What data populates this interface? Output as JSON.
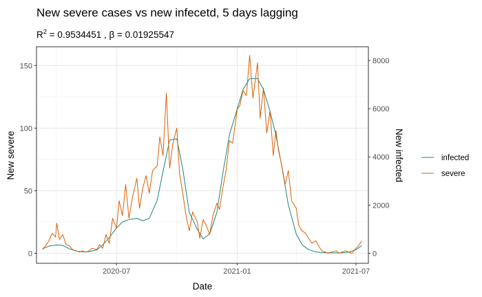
{
  "chart_data": {
    "type": "line",
    "title": "New severe cases vs new infecetd, 5 days lagging",
    "subtitle": {
      "r_label": "R",
      "r_sup": "2",
      "r_value": " = 0.9534451 , ",
      "beta_label": "β = 0.01925547"
    },
    "xlabel": "Date",
    "ylabel_left": "New severe",
    "ylabel_right": "New infected",
    "x_ticks": [
      "2020-07",
      "2021-01",
      "2021-07"
    ],
    "x_range": [
      "2020-03-01",
      "2021-07-20"
    ],
    "y_left_range": [
      -8,
      165
    ],
    "y_left_ticks": [
      0,
      50,
      100,
      150
    ],
    "y_right_ticks": [
      0,
      2000,
      4000,
      6000,
      8000
    ],
    "right_scale_factor": 0.01925547,
    "grid": true,
    "legend_position": "right",
    "colors": {
      "infected": "#18847A",
      "severe": "#D95F02"
    },
    "series": [
      {
        "name": "infected",
        "axis": "right",
        "x": [
          "2020-03-10",
          "2020-03-20",
          "2020-04-01",
          "2020-04-10",
          "2020-04-20",
          "2020-05-01",
          "2020-05-10",
          "2020-05-20",
          "2020-06-01",
          "2020-06-10",
          "2020-06-20",
          "2020-07-01",
          "2020-07-10",
          "2020-07-20",
          "2020-08-01",
          "2020-08-10",
          "2020-08-20",
          "2020-09-01",
          "2020-09-10",
          "2020-09-20",
          "2020-10-01",
          "2020-10-10",
          "2020-10-20",
          "2020-11-01",
          "2020-11-10",
          "2020-11-20",
          "2020-12-01",
          "2020-12-10",
          "2020-12-20",
          "2021-01-01",
          "2021-01-10",
          "2021-01-20",
          "2021-02-01",
          "2021-02-10",
          "2021-02-20",
          "2021-03-01",
          "2021-03-10",
          "2021-03-20",
          "2021-04-01",
          "2021-04-10",
          "2021-04-20",
          "2021-05-01",
          "2021-05-10",
          "2021-05-20",
          "2021-06-01",
          "2021-06-10",
          "2021-06-20",
          "2021-07-01",
          "2021-07-10"
        ],
        "values": [
          180,
          300,
          350,
          330,
          190,
          90,
          60,
          70,
          140,
          350,
          650,
          1050,
          1300,
          1400,
          1450,
          1350,
          1450,
          2200,
          3400,
          4700,
          4750,
          3500,
          1700,
          1000,
          600,
          800,
          1700,
          3300,
          4900,
          6000,
          6800,
          7250,
          7250,
          6800,
          5900,
          4900,
          3600,
          2000,
          800,
          350,
          150,
          60,
          30,
          20,
          15,
          20,
          50,
          150,
          320
        ]
      },
      {
        "name": "severe",
        "axis": "left",
        "x": [
          "2020-03-10",
          "2020-03-15",
          "2020-03-20",
          "2020-03-25",
          "2020-03-30",
          "2020-04-01",
          "2020-04-05",
          "2020-04-10",
          "2020-04-15",
          "2020-04-20",
          "2020-04-25",
          "2020-05-01",
          "2020-05-05",
          "2020-05-10",
          "2020-05-15",
          "2020-05-20",
          "2020-05-25",
          "2020-06-01",
          "2020-06-05",
          "2020-06-10",
          "2020-06-15",
          "2020-06-20",
          "2020-06-25",
          "2020-07-01",
          "2020-07-05",
          "2020-07-10",
          "2020-07-15",
          "2020-07-20",
          "2020-07-25",
          "2020-08-01",
          "2020-08-05",
          "2020-08-10",
          "2020-08-15",
          "2020-08-20",
          "2020-08-25",
          "2020-09-01",
          "2020-09-05",
          "2020-09-10",
          "2020-09-15",
          "2020-09-20",
          "2020-09-25",
          "2020-10-01",
          "2020-10-05",
          "2020-10-10",
          "2020-10-15",
          "2020-10-20",
          "2020-10-25",
          "2020-11-01",
          "2020-11-05",
          "2020-11-10",
          "2020-11-15",
          "2020-11-20",
          "2020-11-25",
          "2020-12-01",
          "2020-12-05",
          "2020-12-10",
          "2020-12-15",
          "2020-12-20",
          "2020-12-25",
          "2021-01-01",
          "2021-01-05",
          "2021-01-10",
          "2021-01-15",
          "2021-01-20",
          "2021-01-25",
          "2021-02-01",
          "2021-02-05",
          "2021-02-10",
          "2021-02-15",
          "2021-02-20",
          "2021-02-25",
          "2021-03-01",
          "2021-03-05",
          "2021-03-10",
          "2021-03-15",
          "2021-03-20",
          "2021-03-25",
          "2021-04-01",
          "2021-04-05",
          "2021-04-10",
          "2021-04-15",
          "2021-04-20",
          "2021-04-25",
          "2021-05-01",
          "2021-05-05",
          "2021-05-10",
          "2021-05-15",
          "2021-05-20",
          "2021-05-25",
          "2021-06-01",
          "2021-06-05",
          "2021-06-10",
          "2021-06-15",
          "2021-06-20",
          "2021-06-25",
          "2021-07-01",
          "2021-07-05",
          "2021-07-10"
        ],
        "values": [
          3,
          6,
          10,
          16,
          13,
          24,
          11,
          15,
          7,
          6,
          3,
          2,
          1,
          2,
          1,
          2,
          4,
          3,
          7,
          4,
          15,
          8,
          28,
          20,
          42,
          30,
          55,
          28,
          44,
          60,
          36,
          52,
          62,
          48,
          66,
          70,
          93,
          78,
          128,
          68,
          88,
          100,
          64,
          48,
          30,
          18,
          33,
          25,
          12,
          27,
          22,
          15,
          30,
          40,
          35,
          52,
          66,
          90,
          88,
          115,
          118,
          130,
          126,
          158,
          124,
          152,
          108,
          132,
          96,
          114,
          78,
          98,
          82,
          70,
          55,
          66,
          42,
          36,
          22,
          18,
          16,
          12,
          8,
          10,
          6,
          2,
          1,
          0,
          1,
          2,
          0,
          1,
          2,
          1,
          0,
          4,
          6,
          10
        ]
      }
    ]
  }
}
